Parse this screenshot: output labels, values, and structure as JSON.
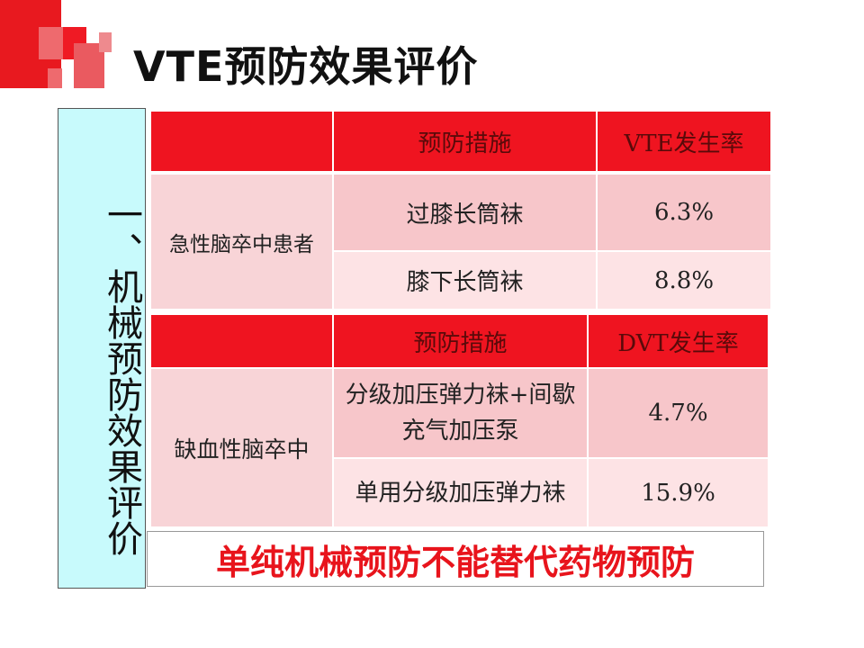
{
  "title": "VTE预防效果评价",
  "side_label": "一、机械预防效果评价",
  "table1": {
    "headers": [
      "",
      "预防措施",
      "VTE发生率"
    ],
    "group": "急性脑卒中患者",
    "rows": [
      {
        "measure": "过膝长筒袜",
        "rate": "6.3%"
      },
      {
        "measure": "膝下长筒袜",
        "rate": "8.8%"
      }
    ]
  },
  "table2": {
    "headers": [
      "",
      "预防措施",
      "DVT发生率"
    ],
    "group": "缺血性脑卒中",
    "rows": [
      {
        "measure": "分级加压弹力袜+间歇充气加压泵",
        "rate": "4.7%"
      },
      {
        "measure": "单用分级加压弹力袜",
        "rate": "15.9%"
      }
    ]
  },
  "conclusion": "单纯机械预防不能替代药物预防",
  "colors": {
    "header_red": "#ef1420",
    "row_pink": "#f7c6ca",
    "row_light": "#fde3e5",
    "side_cyan": "#c8fafc",
    "conclusion_red": "#e8141c"
  }
}
